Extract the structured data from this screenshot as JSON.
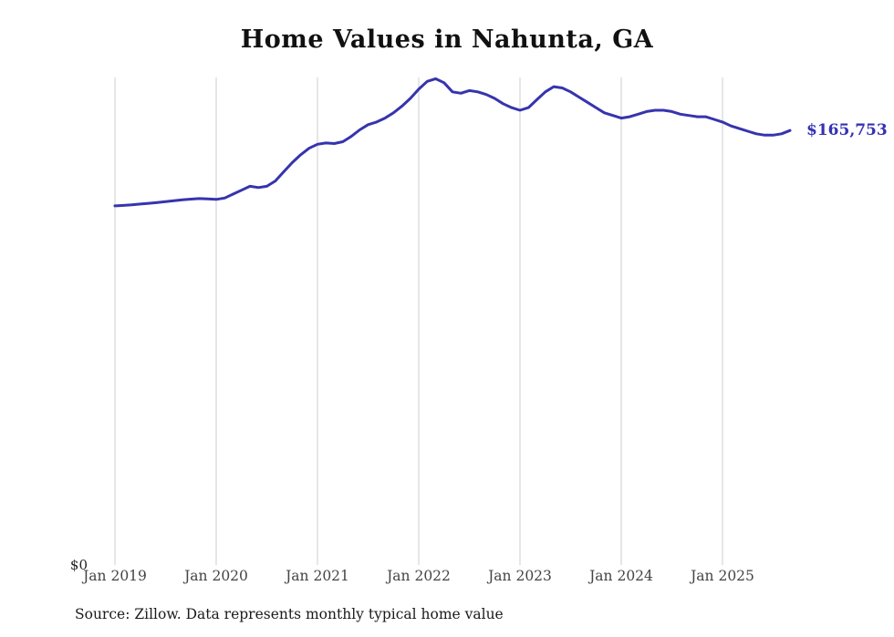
{
  "title": "Home Values in Nahunta, GA",
  "end_value_label": "$165,753",
  "y_axis": {
    "zero_label": "$0"
  },
  "source_note": "Source: Zillow. Data represents monthly typical home value",
  "colors": {
    "line": "#3634ad",
    "grid": "#cccccc",
    "tick_text": "#444444",
    "title_text": "#111111",
    "end_label_text": "#3431b4"
  },
  "chart_data": {
    "type": "line",
    "title": "Home Values in Nahunta, GA",
    "xlabel": "",
    "ylabel": "",
    "unit": "USD",
    "frequency": "monthly",
    "grid": "vertical-only",
    "legend": "none",
    "ylim": [
      0,
      186000
    ],
    "x_tick_labels": [
      "Jan 2019",
      "Jan 2020",
      "Jan 2021",
      "Jan 2022",
      "Jan 2023",
      "Jan 2024",
      "Jan 2025"
    ],
    "x": [
      "2019-01",
      "2019-02",
      "2019-03",
      "2019-04",
      "2019-05",
      "2019-06",
      "2019-07",
      "2019-08",
      "2019-09",
      "2019-10",
      "2019-11",
      "2019-12",
      "2020-01",
      "2020-02",
      "2020-03",
      "2020-04",
      "2020-05",
      "2020-06",
      "2020-07",
      "2020-08",
      "2020-09",
      "2020-10",
      "2020-11",
      "2020-12",
      "2021-01",
      "2021-02",
      "2021-03",
      "2021-04",
      "2021-05",
      "2021-06",
      "2021-07",
      "2021-08",
      "2021-09",
      "2021-10",
      "2021-11",
      "2021-12",
      "2022-01",
      "2022-02",
      "2022-03",
      "2022-04",
      "2022-05",
      "2022-06",
      "2022-07",
      "2022-08",
      "2022-09",
      "2022-10",
      "2022-11",
      "2022-12",
      "2023-01",
      "2023-02",
      "2023-03",
      "2023-04",
      "2023-05",
      "2023-06",
      "2023-07",
      "2023-08",
      "2023-09",
      "2023-10",
      "2023-11",
      "2023-12",
      "2024-01",
      "2024-02",
      "2024-03",
      "2024-04",
      "2024-05",
      "2024-06",
      "2024-07",
      "2024-08",
      "2024-09",
      "2024-10",
      "2024-11",
      "2024-12",
      "2025-01",
      "2025-02",
      "2025-03",
      "2025-04",
      "2025-05",
      "2025-06",
      "2025-07",
      "2025-08",
      "2025-09"
    ],
    "values": [
      137000,
      137200,
      137400,
      137700,
      138000,
      138300,
      138600,
      139000,
      139300,
      139600,
      139800,
      139700,
      139500,
      140000,
      141500,
      143000,
      144500,
      144000,
      144500,
      146500,
      150000,
      153500,
      156500,
      159000,
      160500,
      161000,
      160800,
      161500,
      163500,
      166000,
      168000,
      169000,
      170500,
      172500,
      175000,
      178000,
      181500,
      184500,
      185500,
      184000,
      180500,
      180000,
      181000,
      180500,
      179500,
      178000,
      176000,
      174500,
      173500,
      174500,
      177500,
      180500,
      182500,
      182000,
      180500,
      178500,
      176500,
      174500,
      172500,
      171500,
      170500,
      171000,
      172000,
      173000,
      173500,
      173500,
      173000,
      172000,
      171500,
      171000,
      171000,
      170000,
      169000,
      167500,
      166500,
      165500,
      164500,
      164000,
      164000,
      164500,
      165753
    ],
    "end_annotation": {
      "x": "2025-09",
      "value": 165753,
      "label": "$165,753"
    }
  }
}
